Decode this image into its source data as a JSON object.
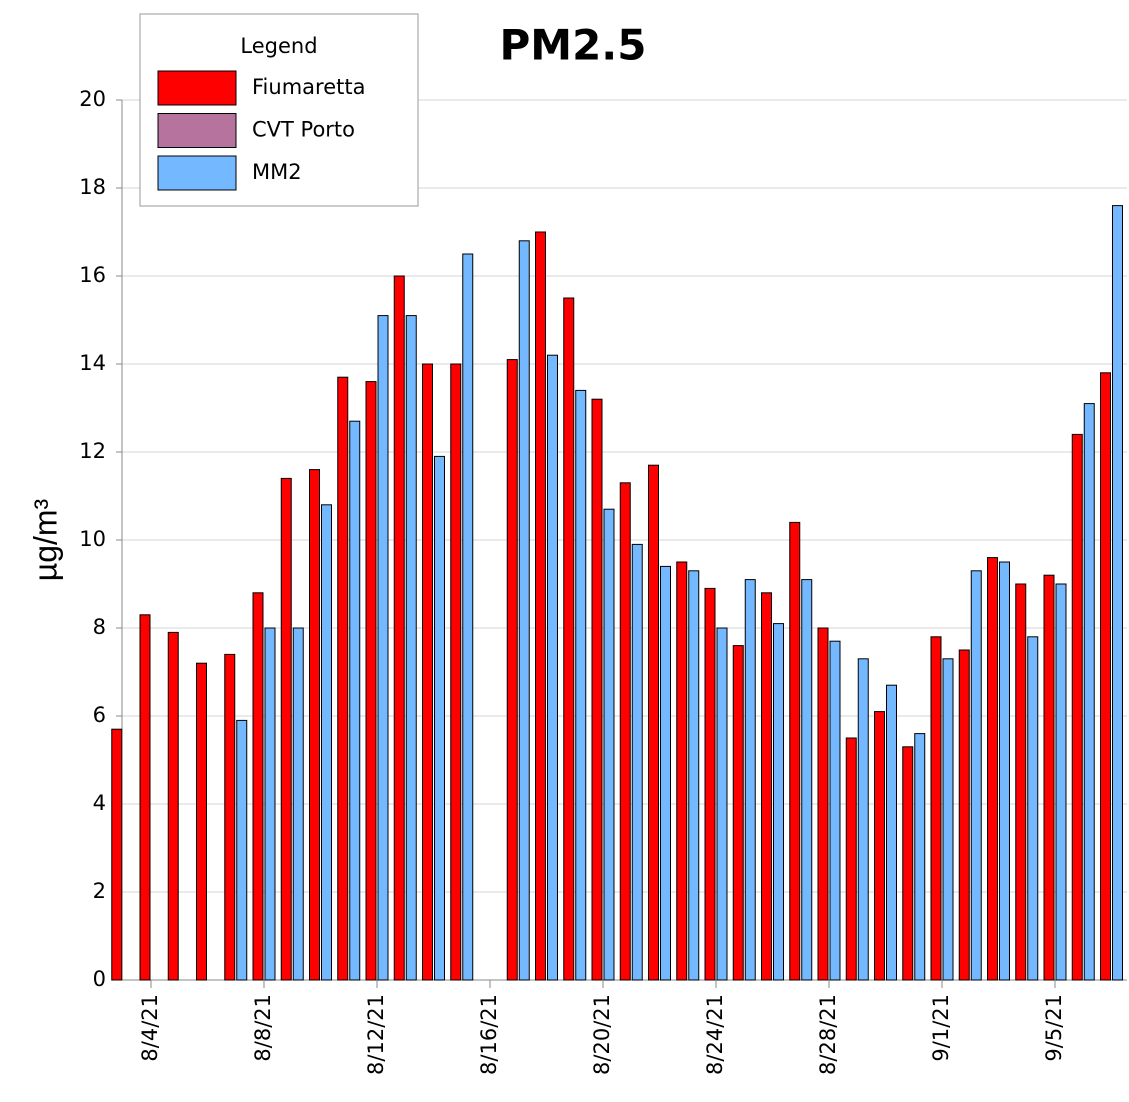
{
  "chart_data": {
    "type": "bar",
    "title": "PM2.5",
    "y_label": "µg/m³",
    "legend_title": "Legend",
    "categories": [
      null,
      "8/4/21",
      null,
      null,
      null,
      "8/8/21",
      null,
      null,
      null,
      "8/12/21",
      null,
      null,
      null,
      "8/16/21",
      null,
      null,
      null,
      "8/20/21",
      null,
      null,
      null,
      "8/24/21",
      null,
      null,
      null,
      "8/28/21",
      null,
      null,
      null,
      "9/1/21",
      null,
      null,
      null,
      "9/5/21",
      null,
      null
    ],
    "series": [
      {
        "name": "Fiumaretta",
        "color": "#ff0000",
        "values": [
          5.7,
          8.3,
          7.9,
          7.2,
          7.4,
          8.8,
          11.4,
          11.6,
          13.7,
          13.6,
          16.0,
          14.0,
          14.0,
          null,
          14.1,
          17.0,
          15.5,
          13.2,
          11.3,
          11.7,
          9.5,
          8.9,
          7.6,
          8.8,
          10.4,
          8.0,
          5.5,
          6.1,
          5.3,
          7.8,
          7.5,
          9.6,
          9.0,
          9.2,
          12.4,
          13.8
        ]
      },
      {
        "name": "CVT Porto",
        "color": "#b5739d",
        "values": [
          null,
          null,
          null,
          null,
          null,
          null,
          null,
          null,
          null,
          null,
          null,
          null,
          null,
          null,
          null,
          null,
          null,
          null,
          null,
          null,
          null,
          null,
          null,
          null,
          null,
          null,
          null,
          null,
          null,
          null,
          null,
          null,
          null,
          null,
          null,
          null
        ]
      },
      {
        "name": "MM2",
        "color": "#74b9ff",
        "values": [
          null,
          null,
          0,
          null,
          5.9,
          8.0,
          8.0,
          10.8,
          12.7,
          15.1,
          15.1,
          11.9,
          16.5,
          null,
          16.8,
          14.2,
          13.4,
          10.7,
          9.9,
          9.4,
          9.3,
          8.0,
          9.1,
          8.1,
          9.1,
          7.7,
          7.3,
          6.7,
          5.6,
          7.3,
          9.3,
          9.5,
          7.8,
          9.0,
          13.1,
          17.6
        ]
      }
    ],
    "ylim": [
      0,
      20
    ],
    "yticks": [
      0,
      2,
      4,
      6,
      8,
      10,
      12,
      14,
      16,
      18,
      20
    ],
    "grid": true
  }
}
